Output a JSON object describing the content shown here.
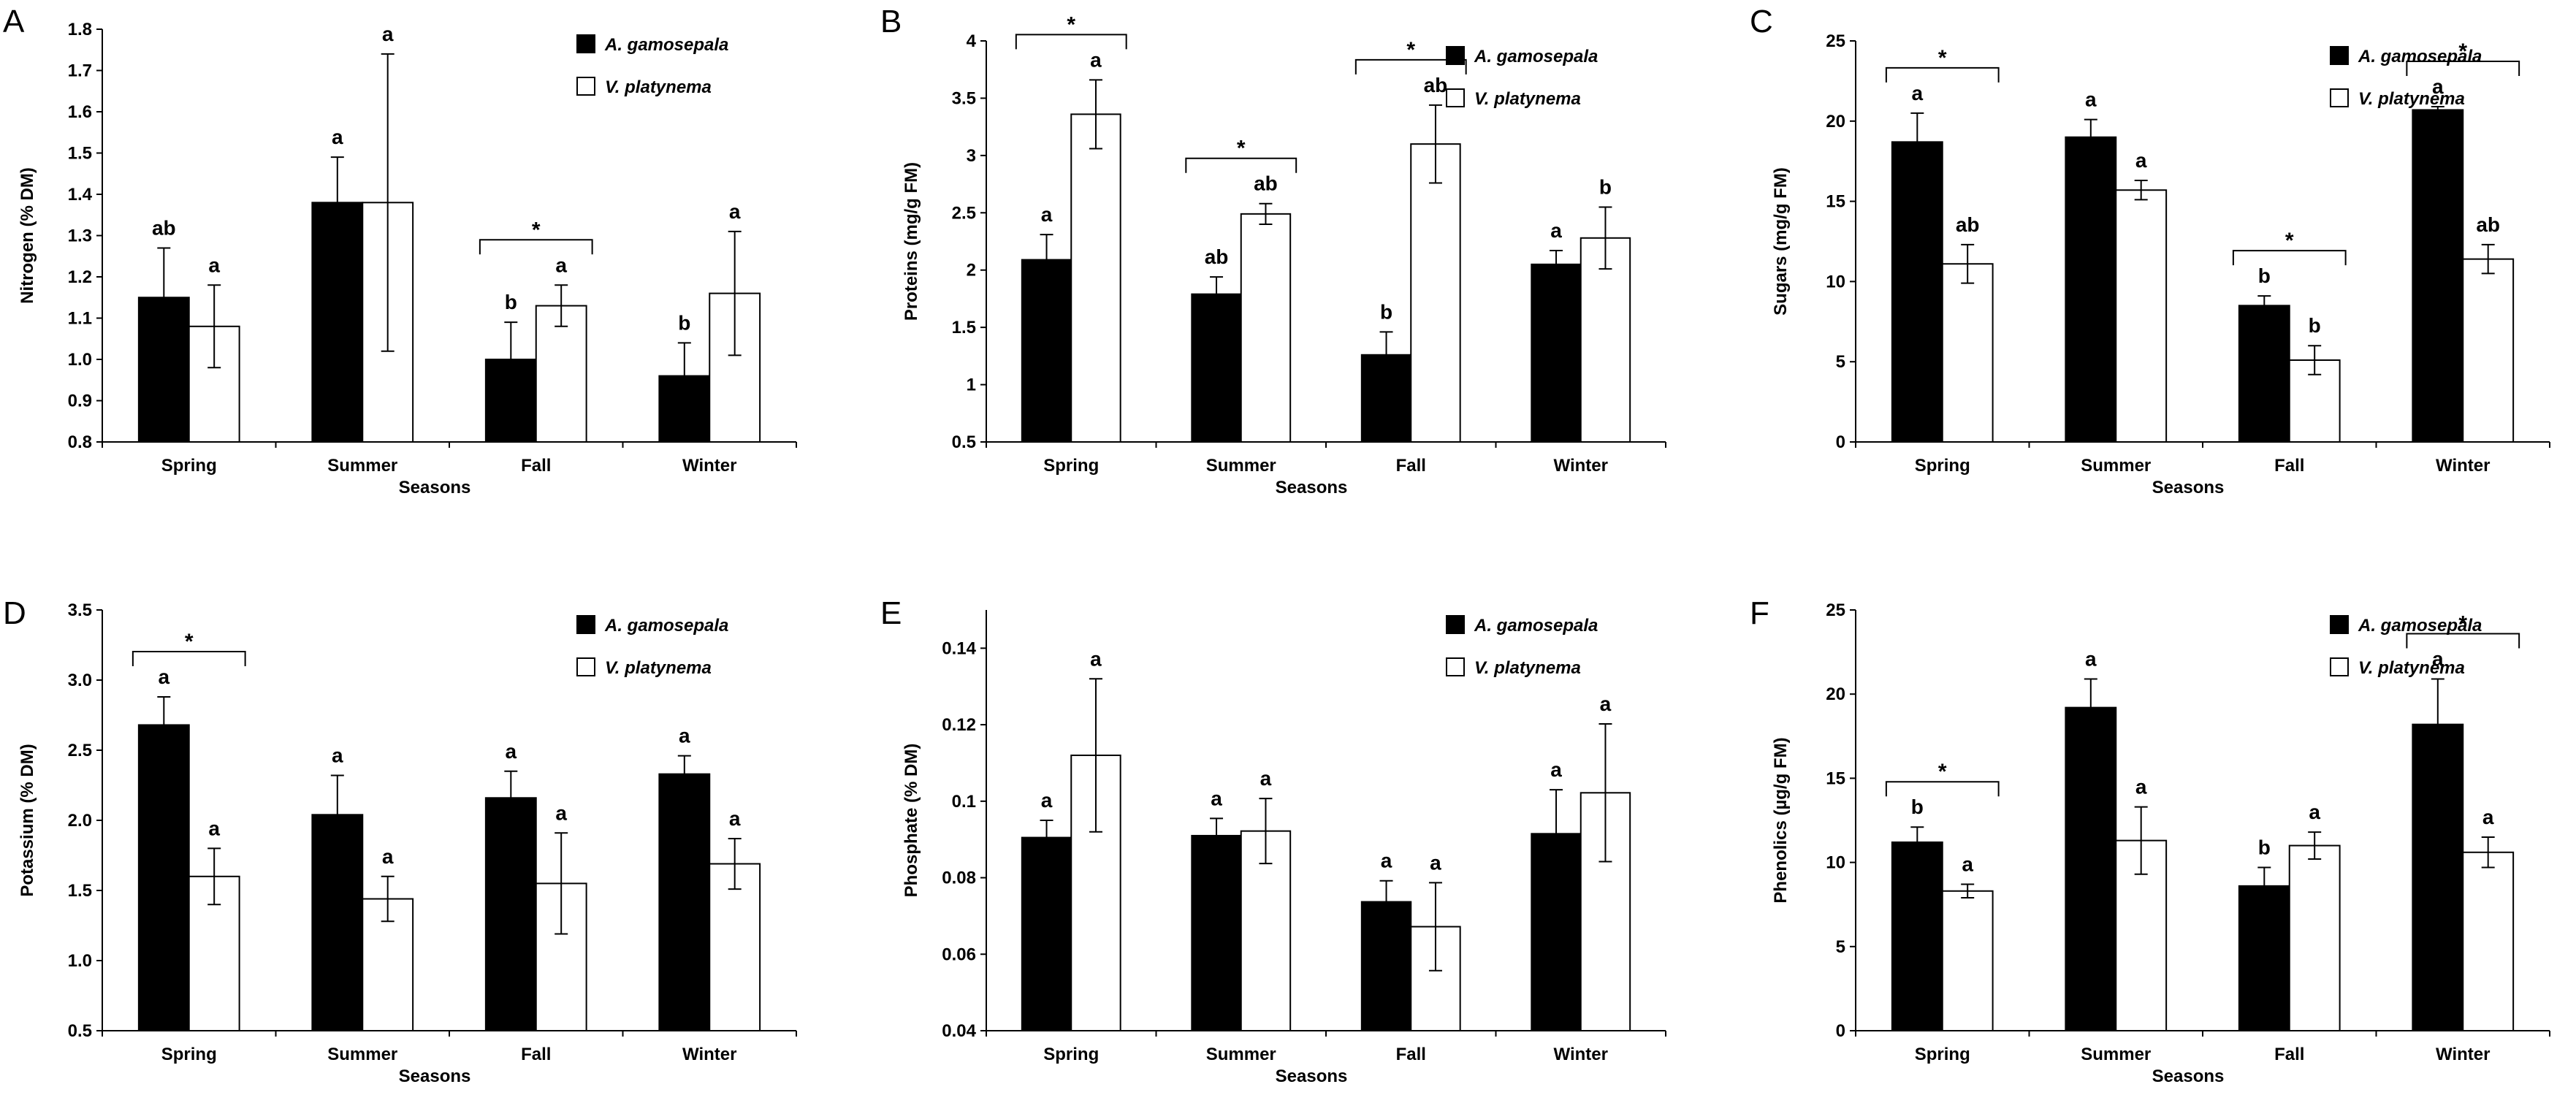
{
  "figure": {
    "seasons": [
      "Spring",
      "Summer",
      "Fall",
      "Winter"
    ]
  },
  "chart_data": [
    {
      "type": "bar",
      "panel": "A",
      "ylabel": "Nitrogen (% DM)",
      "xlabel": "Seasons",
      "ylim": [
        0.8,
        1.8
      ],
      "yticks": [
        0.8,
        0.9,
        1.0,
        1.1,
        1.2,
        1.3,
        1.4,
        1.5,
        1.6,
        1.7,
        1.8
      ],
      "ytick_labels": [
        "0.8",
        "0.9",
        "1.0",
        "1.1",
        "1.2",
        "1.3",
        "1.4",
        "1.5",
        "1.6",
        "1.7",
        "1.8"
      ],
      "categories": [
        "Spring",
        "Summer",
        "Fall",
        "Winter"
      ],
      "legend_position": "top-right",
      "series": [
        {
          "name": "A. gamosepala",
          "color": "#000000",
          "values": [
            1.15,
            1.38,
            1.0,
            0.96
          ],
          "errors": [
            0.12,
            0.11,
            0.09,
            0.08
          ],
          "letters": [
            "ab",
            "a",
            "b",
            "b"
          ]
        },
        {
          "name": "V. platynema",
          "color": "#ffffff",
          "values": [
            1.08,
            1.38,
            1.13,
            1.16
          ],
          "errors": [
            0.1,
            0.36,
            0.05,
            0.15
          ],
          "letters": [
            "a",
            "a",
            "a",
            "a"
          ]
        }
      ],
      "significance": [
        {
          "category": "Fall",
          "label": "*"
        }
      ]
    },
    {
      "type": "bar",
      "panel": "B",
      "ylabel": "Proteins (mg/g FM)",
      "xlabel": "Seasons",
      "ylim": [
        0.5,
        4
      ],
      "yticks": [
        0.5,
        1,
        1.5,
        2,
        2.5,
        3,
        3.5,
        4
      ],
      "ytick_labels": [
        "0.5",
        "1",
        "1.5",
        "2",
        "2.5",
        "3",
        "3.5",
        "4"
      ],
      "categories": [
        "Spring",
        "Summer",
        "Fall",
        "Winter"
      ],
      "legend_position": "top-right",
      "series": [
        {
          "name": "A. gamosepala",
          "color": "#000000",
          "values": [
            2.09,
            1.79,
            1.26,
            2.05
          ],
          "errors": [
            0.22,
            0.15,
            0.2,
            0.12
          ],
          "letters": [
            "a",
            "ab",
            "b",
            "a"
          ]
        },
        {
          "name": "V. platynema",
          "color": "#ffffff",
          "values": [
            3.36,
            2.49,
            3.1,
            2.28
          ],
          "errors": [
            0.3,
            0.09,
            0.34,
            0.27
          ],
          "letters": [
            "a",
            "ab",
            "ab",
            "b"
          ]
        }
      ],
      "significance": [
        {
          "category": "Spring",
          "label": "*"
        },
        {
          "category": "Summer",
          "label": "*"
        },
        {
          "category": "Fall",
          "label": "*"
        }
      ]
    },
    {
      "type": "bar",
      "panel": "C",
      "ylabel": "Sugars (mg/g FM)",
      "xlabel": "Seasons",
      "ylim": [
        0,
        25
      ],
      "yticks": [
        0,
        5,
        10,
        15,
        20,
        25
      ],
      "ytick_labels": [
        "0",
        "5",
        "10",
        "15",
        "20",
        "25"
      ],
      "categories": [
        "Spring",
        "Summer",
        "Fall",
        "Winter"
      ],
      "legend_position": "top-right",
      "series": [
        {
          "name": "A. gamosepala",
          "color": "#000000",
          "values": [
            18.7,
            19.0,
            8.5,
            20.7
          ],
          "errors": [
            1.8,
            1.1,
            0.6,
            0.2
          ],
          "letters": [
            "a",
            "a",
            "b",
            "a"
          ]
        },
        {
          "name": "V. platynema",
          "color": "#ffffff",
          "values": [
            11.1,
            15.7,
            5.1,
            11.4
          ],
          "errors": [
            1.2,
            0.6,
            0.9,
            0.9
          ],
          "letters": [
            "ab",
            "a",
            "b",
            "ab"
          ]
        }
      ],
      "significance": [
        {
          "category": "Spring",
          "label": "*"
        },
        {
          "category": "Fall",
          "label": "*"
        },
        {
          "category": "Winter",
          "label": "*"
        }
      ]
    },
    {
      "type": "bar",
      "panel": "D",
      "ylabel": "Potassium (% DM)",
      "xlabel": "Seasons",
      "ylim": [
        0.5,
        3.5
      ],
      "yticks": [
        0.5,
        1.0,
        1.5,
        2.0,
        2.5,
        3.0,
        3.5
      ],
      "ytick_labels": [
        "0.5",
        "1.0",
        "1.5",
        "2.0",
        "2.5",
        "3.0",
        "3.5"
      ],
      "categories": [
        "Spring",
        "Summer",
        "Fall",
        "Winter"
      ],
      "legend_position": "top-right",
      "series": [
        {
          "name": "A. gamosepala",
          "color": "#000000",
          "values": [
            2.68,
            2.04,
            2.16,
            2.33
          ],
          "errors": [
            0.2,
            0.28,
            0.19,
            0.13
          ],
          "letters": [
            "a",
            "a",
            "a",
            "a"
          ]
        },
        {
          "name": "V. platynema",
          "color": "#ffffff",
          "values": [
            1.6,
            1.44,
            1.55,
            1.69
          ],
          "errors": [
            0.2,
            0.16,
            0.36,
            0.18
          ],
          "letters": [
            "a",
            "a",
            "a",
            "a"
          ]
        }
      ],
      "significance": [
        {
          "category": "Spring",
          "label": "*"
        }
      ]
    },
    {
      "type": "bar",
      "panel": "E",
      "ylabel": "Phosphate (% DM)",
      "xlabel": "Seasons",
      "ylim": [
        0.04,
        0.15
      ],
      "yticks": [
        0.04,
        0.06,
        0.08,
        0.1,
        0.12,
        0.14
      ],
      "ytick_labels": [
        "0.04",
        "0.06",
        "0.08",
        "0.1",
        "0.12",
        "0.14"
      ],
      "categories": [
        "Spring",
        "Summer",
        "Fall",
        "Winter"
      ],
      "legend_position": "top-right",
      "series": [
        {
          "name": "A. gamosepala",
          "color": "#000000",
          "values": [
            0.0905,
            0.091,
            0.0737,
            0.0915
          ],
          "errors": [
            0.0045,
            0.0045,
            0.0055,
            0.0115
          ],
          "letters": [
            "a",
            "a",
            "a",
            "a"
          ]
        },
        {
          "name": "V. platynema",
          "color": "#ffffff",
          "values": [
            0.112,
            0.0922,
            0.0672,
            0.1022
          ],
          "errors": [
            0.02,
            0.0085,
            0.0115,
            0.018
          ],
          "letters": [
            "a",
            "a",
            "a",
            "a"
          ]
        }
      ],
      "significance": []
    },
    {
      "type": "bar",
      "panel": "F",
      "ylabel": "Phenolics (µg/g FM)",
      "xlabel": "Seasons",
      "ylim": [
        0,
        25
      ],
      "yticks": [
        0,
        5,
        10,
        15,
        20,
        25
      ],
      "ytick_labels": [
        "0",
        "5",
        "10",
        "15",
        "20",
        "25"
      ],
      "categories": [
        "Spring",
        "Summer",
        "Fall",
        "Winter"
      ],
      "legend_position": "top-right",
      "series": [
        {
          "name": "A. gamosepala",
          "color": "#000000",
          "values": [
            11.2,
            19.2,
            8.6,
            18.2
          ],
          "errors": [
            0.9,
            1.7,
            1.1,
            2.7
          ],
          "letters": [
            "b",
            "a",
            "b",
            "a"
          ]
        },
        {
          "name": "V. platynema",
          "color": "#ffffff",
          "values": [
            8.3,
            11.3,
            11.0,
            10.6
          ],
          "errors": [
            0.4,
            2.0,
            0.8,
            0.9
          ],
          "letters": [
            "a",
            "a",
            "a",
            "a"
          ]
        }
      ],
      "significance": [
        {
          "category": "Spring",
          "label": "*"
        },
        {
          "category": "Winter",
          "label": "*"
        }
      ]
    }
  ]
}
